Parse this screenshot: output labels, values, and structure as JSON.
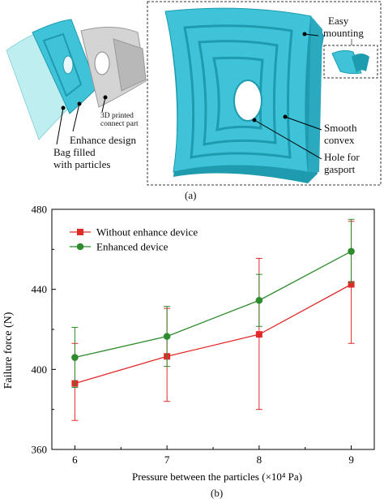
{
  "panel_a": {
    "labels": {
      "enhance_design": "Enhance design",
      "bag_line1": "Bag filled",
      "bag_line2": "with particles",
      "printed_line1": "3D printed",
      "printed_line2": "connect part",
      "easy_line1": "Easy",
      "easy_line2": "mounting",
      "smooth_line1": "Smooth",
      "smooth_line2": "convex",
      "hole_line1": "Hole for",
      "hole_line2": "gasport"
    },
    "caption": "(a)",
    "colors": {
      "device": "#3fc3d8",
      "device_dark": "#1f9bb0",
      "connector": "#c9c9c9"
    }
  },
  "panel_b": {
    "caption": "(b)"
  },
  "chart_data": {
    "type": "line",
    "xlabel": "Pressure between the particles (×10⁴ Pa)",
    "ylabel": "Failure force (N)",
    "x": [
      6,
      7,
      8,
      9
    ],
    "x_ticks": [
      "6",
      "7",
      "8",
      "9"
    ],
    "y_ticks": [
      "360",
      "400",
      "440",
      "480"
    ],
    "xlim": [
      5.75,
      9.25
    ],
    "ylim": [
      360,
      480
    ],
    "legend_position": "top-left",
    "series": [
      {
        "name": "Without enhance device",
        "color": "#e02a2a",
        "marker": "square",
        "values": [
          393,
          406.5,
          417.5,
          442.5
        ],
        "err_low": [
          374.5,
          384,
          380,
          413
        ],
        "err_high": [
          413,
          430.5,
          455.5,
          474
        ]
      },
      {
        "name": "Enhanced device",
        "color": "#2e8b2e",
        "marker": "circle",
        "values": [
          406,
          416.5,
          434.5,
          459
        ],
        "err_low": [
          391,
          401.5,
          421.5,
          443.5
        ],
        "err_high": [
          421,
          431.5,
          447.5,
          475
        ]
      }
    ]
  }
}
